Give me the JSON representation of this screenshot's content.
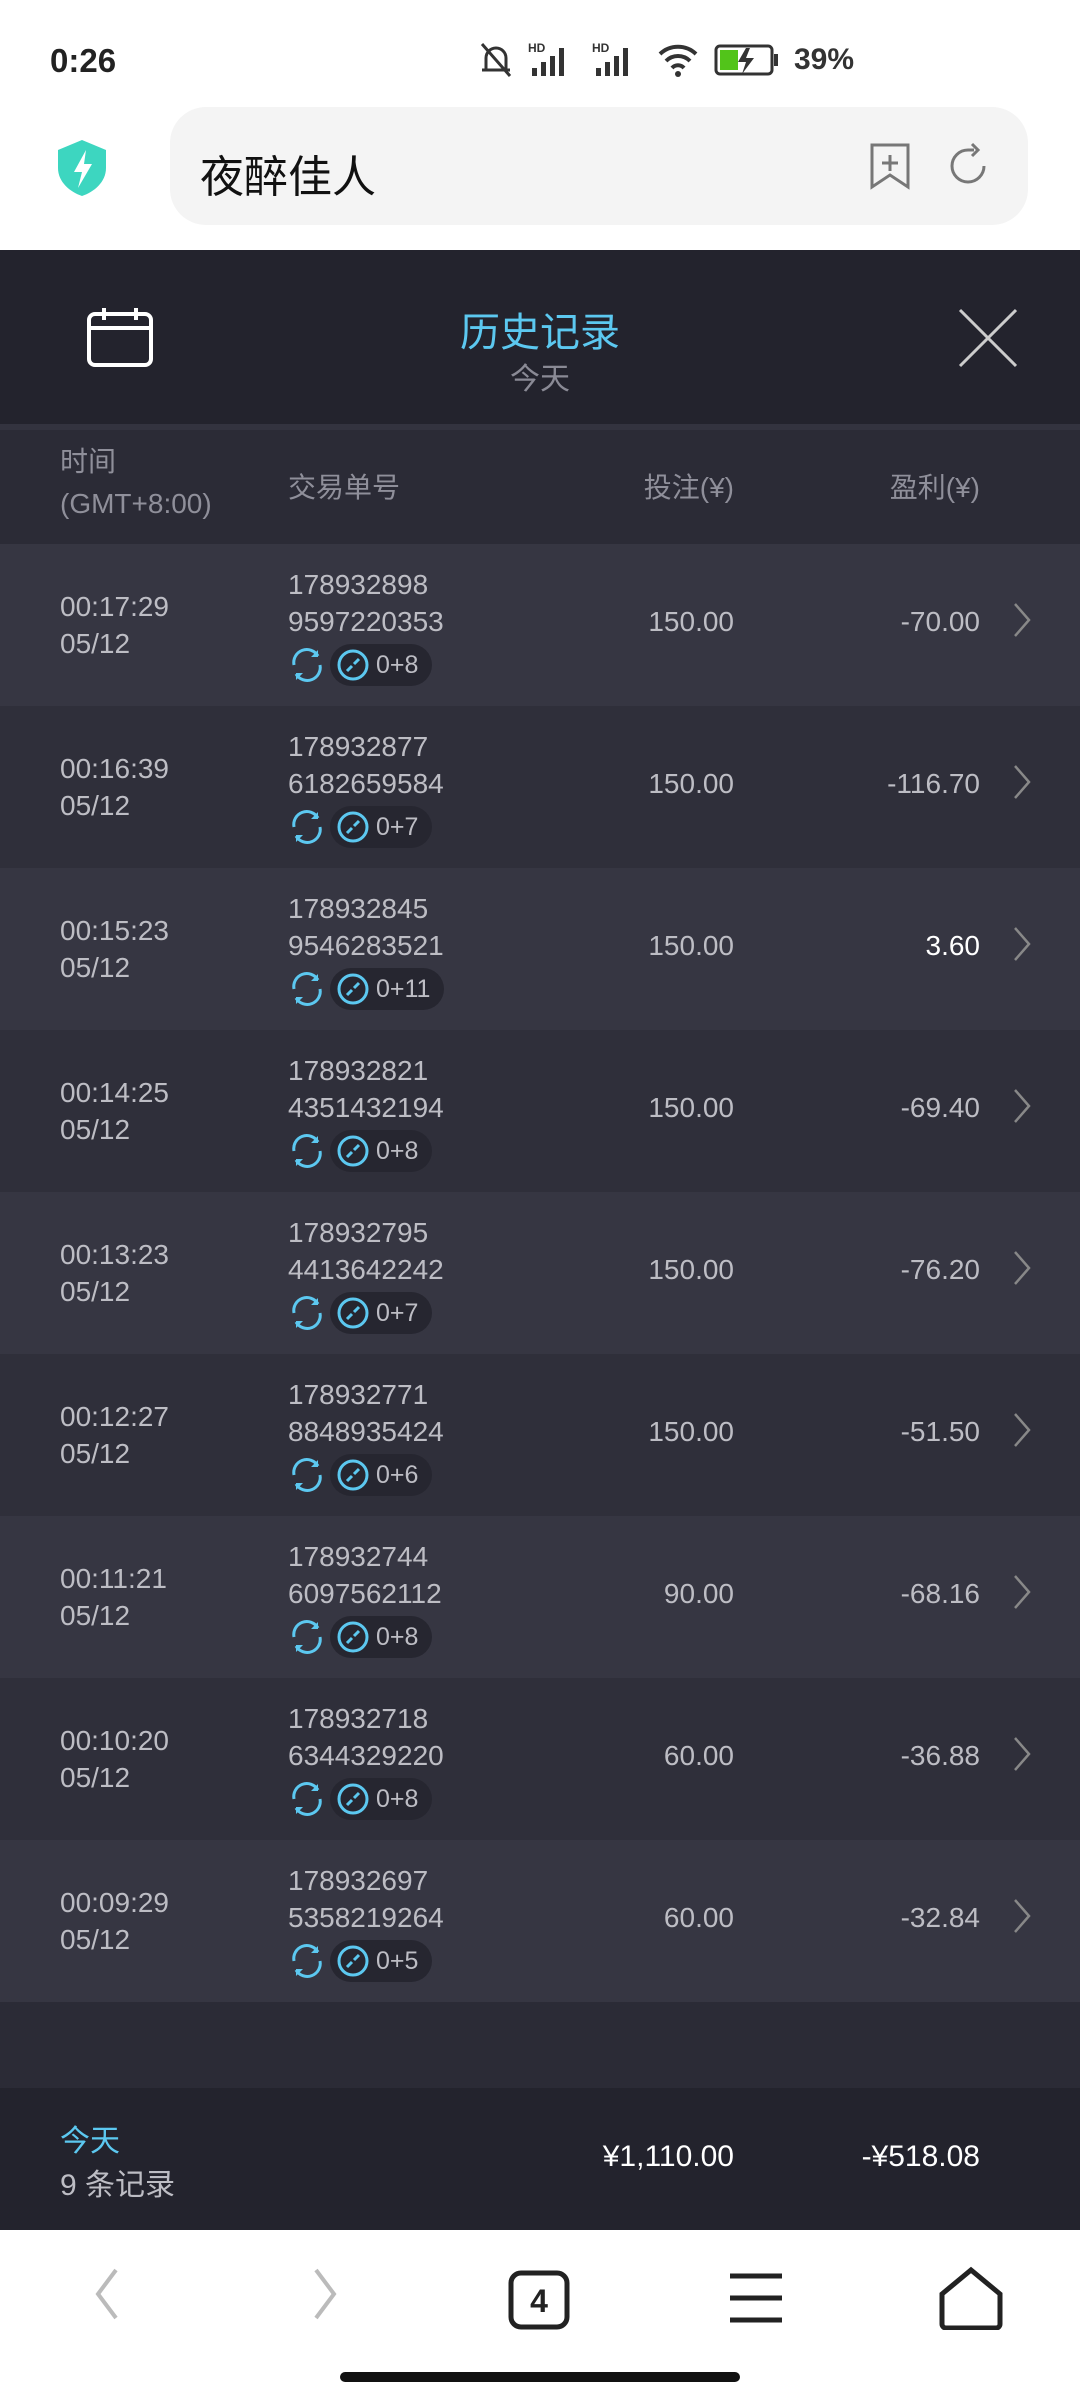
{
  "status": {
    "time": "0:26",
    "battery": "39%"
  },
  "browser": {
    "url_title": "夜醉佳人",
    "tab_count": "4"
  },
  "header": {
    "title": "历史记录",
    "subtitle": "今天"
  },
  "columns": {
    "time": "时间",
    "timezone": "(GMT+8:00)",
    "order": "交易单号",
    "bet": "投注(¥)",
    "profit": "盈利(¥)"
  },
  "rows": [
    {
      "time": "00:17:29",
      "date": "05/12",
      "id1": "178932898",
      "id2": "9597220353",
      "tag": "0+8",
      "bet": "150.00",
      "profit": "-70.00"
    },
    {
      "time": "00:16:39",
      "date": "05/12",
      "id1": "178932877",
      "id2": "6182659584",
      "tag": "0+7",
      "bet": "150.00",
      "profit": "-116.70"
    },
    {
      "time": "00:15:23",
      "date": "05/12",
      "id1": "178932845",
      "id2": "9546283521",
      "tag": "0+11",
      "bet": "150.00",
      "profit": "3.60"
    },
    {
      "time": "00:14:25",
      "date": "05/12",
      "id1": "178932821",
      "id2": "4351432194",
      "tag": "0+8",
      "bet": "150.00",
      "profit": "-69.40"
    },
    {
      "time": "00:13:23",
      "date": "05/12",
      "id1": "178932795",
      "id2": "4413642242",
      "tag": "0+7",
      "bet": "150.00",
      "profit": "-76.20"
    },
    {
      "time": "00:12:27",
      "date": "05/12",
      "id1": "178932771",
      "id2": "8848935424",
      "tag": "0+6",
      "bet": "150.00",
      "profit": "-51.50"
    },
    {
      "time": "00:11:21",
      "date": "05/12",
      "id1": "178932744",
      "id2": "6097562112",
      "tag": "0+8",
      "bet": "90.00",
      "profit": "-68.16"
    },
    {
      "time": "00:10:20",
      "date": "05/12",
      "id1": "178932718",
      "id2": "6344329220",
      "tag": "0+8",
      "bet": "60.00",
      "profit": "-36.88"
    },
    {
      "time": "00:09:29",
      "date": "05/12",
      "id1": "178932697",
      "id2": "5358219264",
      "tag": "0+5",
      "bet": "60.00",
      "profit": "-32.84"
    }
  ],
  "footer": {
    "period": "今天",
    "count": "9 条记录",
    "total_bet": "¥1,110.00",
    "total_profit": "-¥518.08"
  },
  "colors": {
    "accent": "#5cc8f0",
    "background": "#2b2b36",
    "positive": "#ffffff"
  }
}
